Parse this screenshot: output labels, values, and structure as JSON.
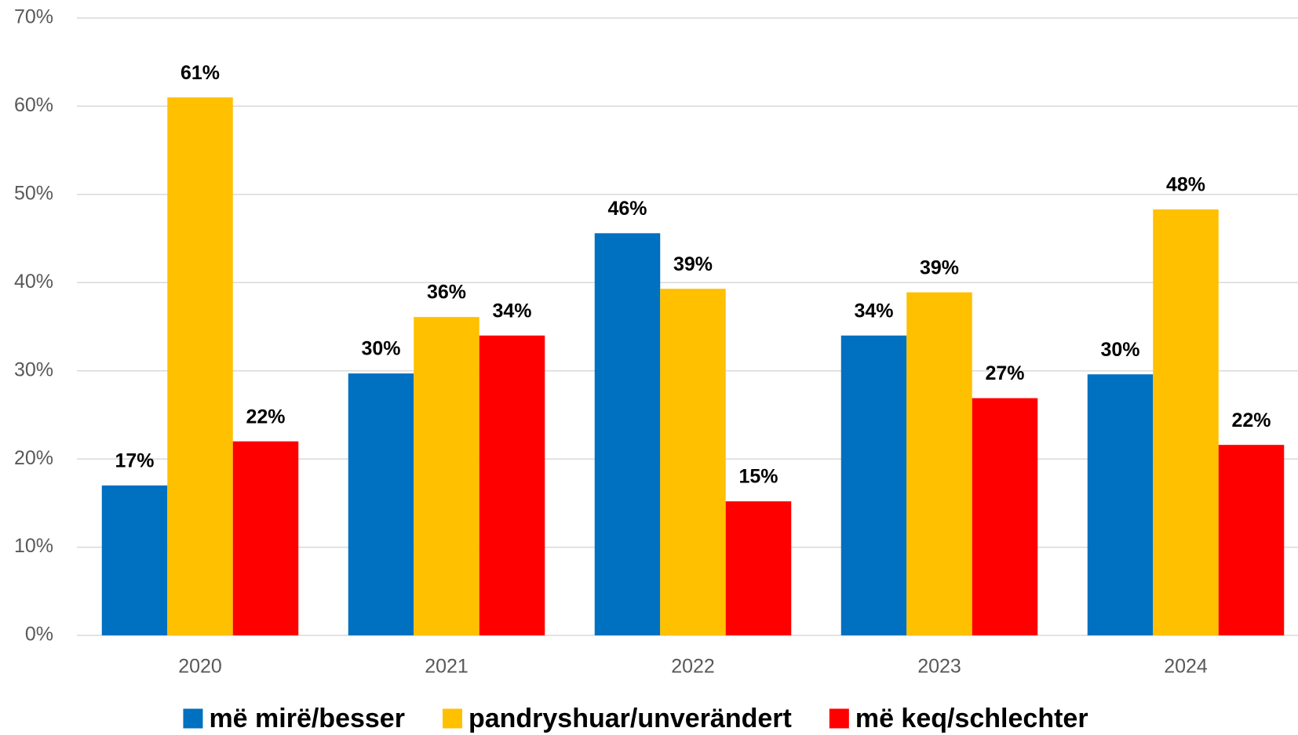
{
  "chart_data": {
    "type": "bar",
    "categories": [
      "2020",
      "2021",
      "2022",
      "2023",
      "2024"
    ],
    "series": [
      {
        "name": "më mirë/besser",
        "color": "#0070c0",
        "values": [
          17,
          29.7,
          45.6,
          34,
          29.6
        ],
        "value_labels": [
          "17%",
          "30%",
          "46%",
          "34%",
          "30%"
        ]
      },
      {
        "name": "pandryshuar/unverändert",
        "color": "#ffc000",
        "values": [
          61,
          36.1,
          39.3,
          38.9,
          48.3
        ],
        "value_labels": [
          "61%",
          "36%",
          "39%",
          "39%",
          "48%"
        ]
      },
      {
        "name": "më keq/schlechter",
        "color": "#ff0000",
        "values": [
          22,
          34,
          15.2,
          26.9,
          21.6
        ],
        "value_labels": [
          "22%",
          "34%",
          "15%",
          "27%",
          "22%"
        ]
      }
    ],
    "ylim": [
      0,
      70
    ],
    "yticks": [
      {
        "value": 0,
        "label": "0%"
      },
      {
        "value": 10,
        "label": "10%"
      },
      {
        "value": 20,
        "label": "20%"
      },
      {
        "value": 30,
        "label": "30%"
      },
      {
        "value": 40,
        "label": "40%"
      },
      {
        "value": 50,
        "label": "50%"
      },
      {
        "value": 60,
        "label": "60%"
      },
      {
        "value": 70,
        "label": "70%"
      }
    ],
    "grid": true,
    "legend": "bottom"
  }
}
